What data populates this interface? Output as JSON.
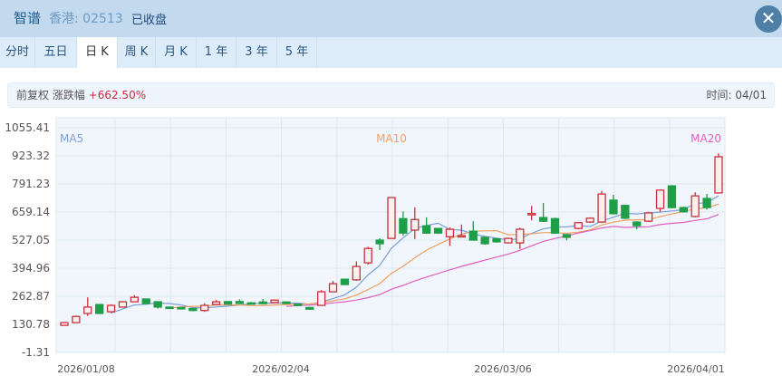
{
  "header": {
    "name": "智谱",
    "code": "香港: 02513",
    "status": "已收盘",
    "close_icon": "close-icon"
  },
  "tabs": [
    {
      "label": "分时"
    },
    {
      "label": "五日"
    },
    {
      "label": "日 K",
      "active": true
    },
    {
      "label": "周 K"
    },
    {
      "label": "月 K"
    },
    {
      "label": "1 年"
    },
    {
      "label": "3 年"
    },
    {
      "label": "5 年"
    }
  ],
  "info": {
    "adjust": "前复权 涨跌幅",
    "change": "+662.50%",
    "time": "时间: 04/01"
  },
  "colors": {
    "up": "#c8323c",
    "down": "#1e9e46",
    "ma5": "#7d9fd8",
    "ma10": "#f0a060",
    "ma20": "#e060c0"
  },
  "chart_data": {
    "type": "candlestick",
    "y_ticks": [
      "1055.41",
      "923.32",
      "791.23",
      "659.14",
      "527.05",
      "394.96",
      "262.87",
      "130.78",
      "-1.31"
    ],
    "ylim": [
      -1.31,
      1055.41
    ],
    "x_labels": [
      "2026/01/08",
      "2026/02/04",
      "2026/03/06",
      "2026/04/01"
    ],
    "legend": [
      "MA5",
      "MA10",
      "MA20"
    ],
    "grid": true,
    "candles": [
      [
        126,
        139,
        141,
        124
      ],
      [
        139,
        168,
        172,
        137
      ],
      [
        182,
        212,
        258,
        170
      ],
      [
        224,
        182,
        226,
        180
      ],
      [
        190,
        220,
        225,
        185
      ],
      [
        212,
        237,
        240,
        210
      ],
      [
        237,
        258,
        268,
        235
      ],
      [
        250,
        229,
        252,
        226
      ],
      [
        237,
        212,
        240,
        205
      ],
      [
        212,
        207,
        214,
        204
      ],
      [
        210,
        204,
        212,
        201
      ],
      [
        205,
        196,
        207,
        193
      ],
      [
        196,
        220,
        230,
        190
      ],
      [
        224,
        237,
        245,
        222
      ],
      [
        238,
        226,
        240,
        224
      ],
      [
        238,
        229,
        248,
        226
      ],
      [
        232,
        228,
        236,
        225
      ],
      [
        236,
        228,
        250,
        224
      ],
      [
        233,
        245,
        248,
        231
      ],
      [
        236,
        229,
        238,
        226
      ],
      [
        226,
        223,
        228,
        220
      ],
      [
        210,
        202,
        212,
        200
      ],
      [
        220,
        284,
        292,
        218
      ],
      [
        284,
        322,
        335,
        282
      ],
      [
        343,
        318,
        345,
        315
      ],
      [
        340,
        403,
        427,
        336
      ],
      [
        420,
        488,
        496,
        412
      ],
      [
        527,
        510,
        536,
        480
      ],
      [
        535,
        727,
        730,
        533
      ],
      [
        628,
        560,
        662,
        548
      ],
      [
        574,
        624,
        681,
        532
      ],
      [
        594,
        560,
        634,
        556
      ],
      [
        582,
        560,
        584,
        556
      ],
      [
        543,
        578,
        587,
        500
      ],
      [
        544,
        548,
        600,
        540
      ],
      [
        569,
        527,
        616,
        524
      ],
      [
        540,
        510,
        542,
        505
      ],
      [
        533,
        519,
        536,
        515
      ],
      [
        514,
        535,
        538,
        510
      ],
      [
        514,
        578,
        585,
        485
      ],
      [
        649,
        652,
        688,
        620
      ],
      [
        633,
        616,
        702,
        612
      ],
      [
        628,
        560,
        632,
        556
      ],
      [
        553,
        540,
        556,
        527
      ],
      [
        582,
        609,
        612,
        578
      ],
      [
        612,
        630,
        634,
        608
      ],
      [
        612,
        744,
        758,
        608
      ],
      [
        715,
        651,
        740,
        648
      ],
      [
        690,
        630,
        694,
        626
      ],
      [
        612,
        595,
        616,
        578
      ],
      [
        616,
        655,
        660,
        612
      ],
      [
        676,
        762,
        764,
        660
      ],
      [
        782,
        680,
        786,
        676
      ],
      [
        680,
        660,
        684,
        656
      ],
      [
        638,
        735,
        752,
        634
      ],
      [
        723,
        680,
        744,
        670
      ],
      [
        749,
        919,
        935,
        746
      ]
    ]
  }
}
